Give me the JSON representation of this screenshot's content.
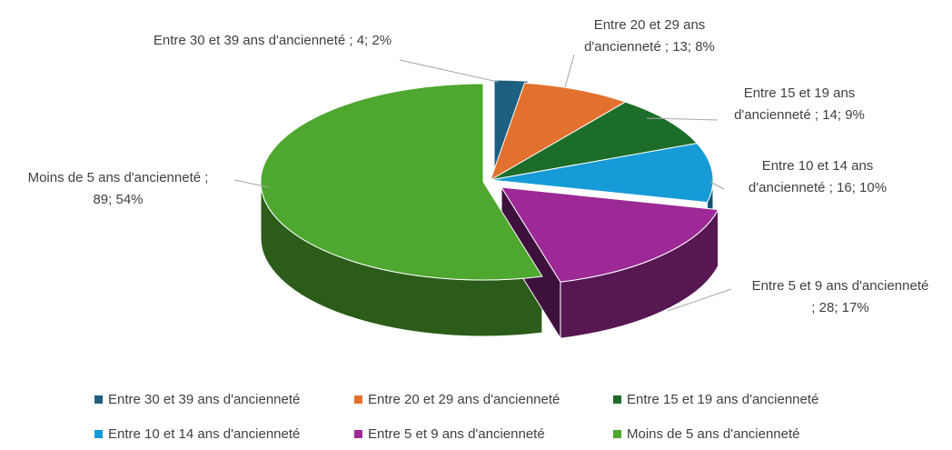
{
  "chart_data": {
    "type": "pie3d",
    "categories": [
      "Entre 30 et 39 ans d'ancienneté",
      "Entre 20 et 29 ans d'ancienneté",
      "Entre 15 et 19 ans d'ancienneté",
      "Entre 10 et 14 ans d'ancienneté",
      "Entre 5 et 9 ans d'ancienneté",
      "Moins de 5 ans d'ancienneté"
    ],
    "values": [
      4,
      13,
      14,
      16,
      28,
      89
    ],
    "value_labels": [
      [
        "Entre 30 et 39 ans d'ancienneté ; 4; 2%"
      ],
      [
        "Entre 20 et 29 ans",
        "d'ancienneté ; 13; 8%"
      ],
      [
        "Entre 15 et 19 ans",
        "d'ancienneté ; 14; 9%"
      ],
      [
        "Entre 10 et 14 ans",
        "d'ancienneté ; 16; 10%"
      ],
      [
        "Entre 5 et 9 ans d'ancienneté",
        "; 28; 17%"
      ],
      [
        "Moins de 5 ans d'ancienneté ;",
        "89; 54%"
      ]
    ],
    "colors": [
      "#1d5f80",
      "#e2712f",
      "#1c6d2a",
      "#169bd7",
      "#9c2996",
      "#4ea72e"
    ],
    "legend": "bottom"
  }
}
